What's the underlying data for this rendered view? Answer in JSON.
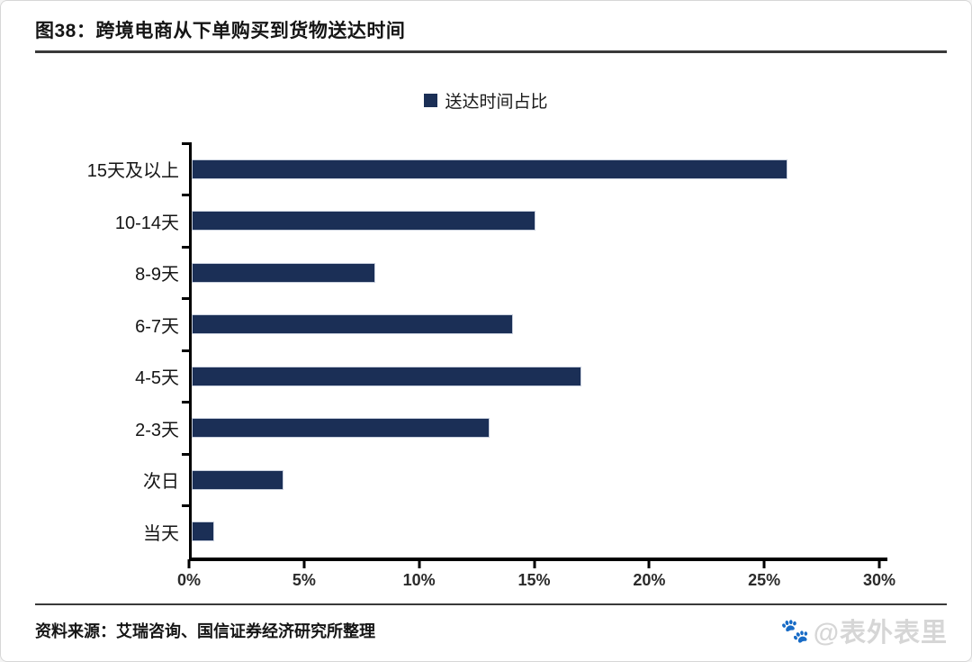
{
  "figure": {
    "title": "图38：跨境电商从下单购买到货物送达时间",
    "source": "资料来源：艾瑞咨询、国信证券经济研究所整理",
    "watermark": "@表外表里",
    "watermark_icon": "baidu-paw"
  },
  "chart_data": {
    "type": "bar",
    "orientation": "horizontal",
    "title": "",
    "legend": [
      "送达时间占比"
    ],
    "legend_position": "top-center",
    "categories": [
      "15天及以上",
      "10-14天",
      "8-9天",
      "6-7天",
      "4-5天",
      "2-3天",
      "次日",
      "当天"
    ],
    "values": [
      26,
      15,
      8,
      14,
      17,
      13,
      4,
      1
    ],
    "unit": "%",
    "xlabel": "",
    "ylabel": "",
    "xlim": [
      0,
      30
    ],
    "xticks": [
      "0%",
      "5%",
      "10%",
      "15%",
      "20%",
      "25%",
      "30%"
    ],
    "grid": false,
    "bar_color": "#1b2f56",
    "axis_color": "#000000"
  }
}
